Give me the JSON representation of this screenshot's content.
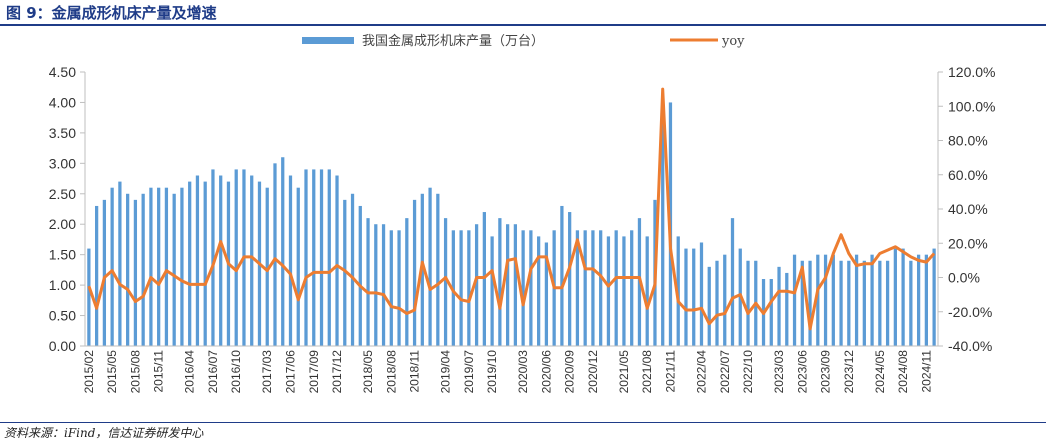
{
  "header": {
    "title": "图 9：金属成形机床产量及增速"
  },
  "footer": {
    "source": "资料来源：iFind，信达证券研发中心"
  },
  "colors": {
    "bar": "#5b9bd5",
    "line": "#ed7d31",
    "axis": "#bfbfbf",
    "title": "#1f3c88"
  },
  "chart_data": {
    "type": "bar+line",
    "legend": {
      "bar_label": "我国金属成形机床产量（万台）",
      "line_label": "yoy",
      "placement": "top"
    },
    "left_axis": {
      "ylim": [
        0,
        4.5
      ],
      "ticks": [
        "0.00",
        "0.50",
        "1.00",
        "1.50",
        "2.00",
        "2.50",
        "3.00",
        "3.50",
        "4.00",
        "4.50"
      ]
    },
    "right_axis": {
      "ylim": [
        -40,
        120
      ],
      "ticks": [
        "-40.0%",
        "-20.0%",
        "0.0%",
        "20.0%",
        "40.0%",
        "60.0%",
        "80.0%",
        "100.0%",
        "120.0%"
      ]
    },
    "x_tick_labels": [
      "2015/02",
      "2015/05",
      "2015/08",
      "2015/11",
      "2016/04",
      "2016/07",
      "2016/10",
      "2017/03",
      "2017/06",
      "2017/09",
      "2017/12",
      "2018/05",
      "2018/08",
      "2018/11",
      "2019/04",
      "2019/07",
      "2019/10",
      "2020/03",
      "2020/06",
      "2020/09",
      "2020/12",
      "2021/05",
      "2021/08",
      "2021/11",
      "2022/04",
      "2022/07",
      "2022/10",
      "2023/03",
      "2023/06",
      "2023/09",
      "2023/12",
      "2024/05",
      "2024/08",
      "2024/11"
    ],
    "categories": [
      "2015/02",
      "2015/03",
      "2015/04",
      "2015/05",
      "2015/06",
      "2015/07",
      "2015/08",
      "2015/09",
      "2015/10",
      "2015/11",
      "2015/12",
      "2016/02",
      "2016/03",
      "2016/04",
      "2016/05",
      "2016/06",
      "2016/07",
      "2016/08",
      "2016/09",
      "2016/10",
      "2016/11",
      "2016/12",
      "2017/02",
      "2017/03",
      "2017/04",
      "2017/05",
      "2017/06",
      "2017/07",
      "2017/08",
      "2017/09",
      "2017/10",
      "2017/11",
      "2017/12",
      "2018/02",
      "2018/03",
      "2018/04",
      "2018/05",
      "2018/06",
      "2018/07",
      "2018/08",
      "2018/09",
      "2018/10",
      "2018/11",
      "2018/12",
      "2019/02",
      "2019/03",
      "2019/04",
      "2019/05",
      "2019/06",
      "2019/07",
      "2019/08",
      "2019/09",
      "2019/10",
      "2019/11",
      "2019/12",
      "2020/02",
      "2020/03",
      "2020/04",
      "2020/05",
      "2020/06",
      "2020/07",
      "2020/08",
      "2020/09",
      "2020/10",
      "2020/11",
      "2020/12",
      "2021/02",
      "2021/03",
      "2021/04",
      "2021/05",
      "2021/06",
      "2021/07",
      "2021/08",
      "2021/09",
      "2021/10",
      "2021/11",
      "2021/12",
      "2022/02",
      "2022/03",
      "2022/04",
      "2022/05",
      "2022/06",
      "2022/07",
      "2022/08",
      "2022/09",
      "2022/10",
      "2022/11",
      "2022/12",
      "2023/02",
      "2023/03",
      "2023/04",
      "2023/05",
      "2023/06",
      "2023/07",
      "2023/08",
      "2023/09",
      "2023/10",
      "2023/11",
      "2023/12",
      "2024/02",
      "2024/03",
      "2024/04",
      "2024/05",
      "2024/06",
      "2024/07",
      "2024/08",
      "2024/09",
      "2024/10",
      "2024/11",
      "2024/12"
    ],
    "series": [
      {
        "name": "我国金属成形机床产量（万台）",
        "type": "bar",
        "axis": "left",
        "values": [
          1.6,
          2.3,
          2.4,
          2.6,
          2.7,
          2.5,
          2.4,
          2.5,
          2.6,
          2.6,
          2.6,
          2.5,
          2.6,
          2.7,
          2.8,
          2.7,
          2.9,
          2.8,
          2.7,
          2.9,
          2.9,
          2.8,
          2.7,
          2.6,
          3.0,
          3.1,
          2.8,
          2.6,
          2.9,
          2.9,
          2.9,
          2.9,
          2.8,
          2.4,
          2.5,
          2.3,
          2.1,
          2.0,
          2.0,
          1.9,
          1.9,
          2.1,
          2.4,
          2.5,
          2.6,
          2.5,
          2.1,
          1.9,
          1.9,
          1.9,
          2.0,
          2.2,
          1.8,
          2.1,
          2.0,
          2.0,
          1.9,
          1.9,
          1.8,
          1.7,
          1.9,
          2.3,
          2.2,
          1.9,
          1.9,
          1.9,
          1.9,
          1.8,
          1.9,
          1.8,
          1.9,
          2.1,
          1.8,
          2.4,
          3.8,
          4.0,
          1.8,
          1.6,
          1.6,
          1.7,
          1.3,
          1.4,
          1.5,
          2.1,
          1.6,
          1.4,
          1.4,
          1.1,
          1.1,
          1.3,
          1.2,
          1.5,
          1.4,
          1.4,
          1.5,
          1.5,
          1.5,
          1.4,
          1.4,
          1.5,
          1.4,
          1.5,
          1.4,
          1.4,
          1.6,
          1.6,
          1.4,
          1.5,
          1.5,
          1.6
        ]
      },
      {
        "name": "yoy",
        "type": "line",
        "axis": "right",
        "values": [
          -5,
          -18,
          0,
          4,
          -4,
          -7,
          -14,
          -11,
          0,
          -4,
          4,
          1,
          -2,
          -4,
          -4,
          -4,
          7,
          21,
          8,
          4,
          12,
          12,
          8,
          4,
          11,
          7,
          2,
          -13,
          0,
          3,
          3,
          3,
          7,
          4,
          0,
          -5,
          -9,
          -9,
          -10,
          -17,
          -18,
          -21,
          -19,
          9,
          -7,
          -4,
          0,
          -8,
          -13,
          -14,
          0,
          0,
          4,
          -18,
          10,
          11,
          -16,
          5,
          12,
          12,
          -6,
          -6,
          6,
          22,
          5,
          5,
          1,
          -5,
          0,
          0,
          0,
          0,
          -18,
          -4,
          110,
          17,
          -14,
          -19,
          -19,
          -18,
          -27,
          -22,
          -21,
          -12,
          -10,
          -21,
          -15,
          -21,
          -14,
          -8,
          -8,
          -9,
          6,
          -30,
          -7,
          0,
          14,
          25,
          14,
          7,
          8,
          8,
          14,
          16,
          18,
          15,
          12,
          10,
          9,
          14
        ]
      }
    ]
  }
}
